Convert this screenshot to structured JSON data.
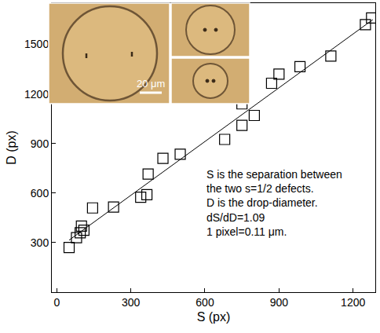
{
  "chart_data": {
    "type": "scatter",
    "x_label": "S (px)",
    "y_label": "D (px)",
    "x": [
      50,
      80,
      95,
      100,
      110,
      145,
      230,
      340,
      365,
      370,
      430,
      500,
      680,
      750,
      750,
      800,
      870,
      900,
      985,
      1110,
      1250,
      1275
    ],
    "values": [
      270,
      330,
      360,
      400,
      375,
      510,
      515,
      575,
      590,
      715,
      810,
      835,
      925,
      1010,
      1140,
      1070,
      1265,
      1320,
      1365,
      1430,
      1620,
      1660
    ],
    "color": "#000000",
    "marker": "square-open",
    "fit": {
      "x": [
        50,
        1280
      ],
      "values": [
        315,
        1650
      ],
      "color": "#000000",
      "line_style": "solid"
    },
    "annotation": [
      "S is the separation between",
      "the two s=1/2 defects.",
      "D is the drop-diameter.",
      "dS/dD=1.09",
      "1 pixel=0.11 μm."
    ],
    "inset_labels": [
      "20 μm"
    ],
    "xlim": [
      -20,
      1290
    ],
    "ylim": [
      0,
      1750
    ],
    "xticks": [
      0,
      300,
      600,
      900,
      1200
    ],
    "yticks": [
      300,
      600,
      900,
      1200,
      1500
    ],
    "grid": false
  }
}
